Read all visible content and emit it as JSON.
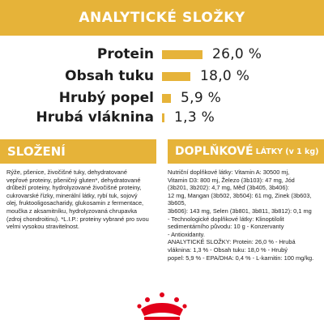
{
  "analytic": {
    "title": "ANALYTICKÉ SLOŽKY",
    "rows": [
      {
        "label": "Protein",
        "value": "26,0 %",
        "percent": 26.0
      },
      {
        "label": "Obsah tuku",
        "value": "18,0 %",
        "percent": 18.0
      },
      {
        "label": "Hrubý popel",
        "value": "5,9 %",
        "percent": 5.9
      },
      {
        "label": "Hrubá vláknina",
        "value": "1,3 %",
        "percent": 1.3
      }
    ]
  },
  "slozeni": {
    "title": "SLOŽENÍ",
    "text": "Rýže, pšenice, živočišné tuky, dehydratované\nvepřové proteiny, pšeničný gluten*, dehydratované\ndrůbeží proteiny, hydrolyzované živočišné proteiny,\ncukrovarské řízky, minerální látky, rybí tuk, sojový\nolej, fruktooligosacharidy, glukosamin z fermentace,\nmoučka z aksamitníku, hydrolyzovaná chrupavka\n(zdroj chondroitinu). *L.I.P.: proteiny vybrané pro svou\nvelmi vysokou stravitelnost."
  },
  "doplnkove": {
    "title": "DOPLŇKOVÉ",
    "title_suffix": "LÁTKY (v 1 kg)",
    "text": "Nutriční doplňkové látky: Vitamin A: 30500 mj,\nVitamin D3: 800 mj, Železo (3b103): 47 mg, Jód\n(3b201, 3b202): 4,7 mg, Měď (3b405, 3b406):\n12 mg, Mangan (3b502, 3b504): 61 mg, Zinek (3b603, 3b605,\n3b606): 143 mg, Selen (3b801, 3b811, 3b812): 0,1 mg\n- Technologické doplňkové látky: Klinoptilolit\nsedimentárního původu: 10 g - Konzervanty\n- Antioxidanty.\nANALYTICKÉ SLOŽKY: Protein: 26,0 % - Hrubá\nvláknina: 1,3 % - Obsah tuku: 18,0 % - Hrubý\npopel: 5,9 % - EPA/DHA: 0,4 % - L-karnitin: 100 mg/kg."
  },
  "logo": {
    "icon": "crown-icon",
    "color": "#e2001a"
  },
  "colors": {
    "accent": "#e6b339"
  }
}
